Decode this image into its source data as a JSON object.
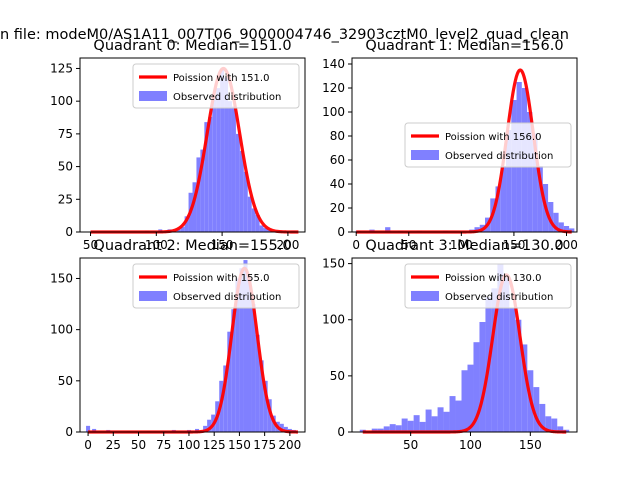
{
  "figure": {
    "suptitle": "n file: modeM0/AS1A11_007T06_9000004746_32903cztM0_level2_quad_clean"
  },
  "colors": {
    "poisson_line": "#ff0000",
    "histogram": "#8080ff",
    "axes": "#000000",
    "background": "#ffffff"
  },
  "chart_data": [
    {
      "type": "bar",
      "title": "Quadrant 0: Median=151.0",
      "median": 151.0,
      "xlim": [
        42,
        213
      ],
      "ylim": [
        0,
        133
      ],
      "xticks": [
        50,
        100,
        150,
        200
      ],
      "yticks": [
        0,
        25,
        50,
        75,
        100,
        125
      ],
      "legend_position": "top-right",
      "series": [
        {
          "name": "Poission with 151.0",
          "kind": "line",
          "mean": 151.0,
          "scale": 125,
          "x_range": [
            50,
            208
          ]
        },
        {
          "name": "Observed distribution",
          "kind": "histogram",
          "bins": [
            [
              93,
              1
            ],
            [
              103,
              2
            ],
            [
              110,
              2
            ],
            [
              117,
              2
            ],
            [
              120,
              4
            ],
            [
              123,
              12
            ],
            [
              126,
              30
            ],
            [
              129,
              38
            ],
            [
              132,
              57
            ],
            [
              135,
              63
            ],
            [
              138,
              84
            ],
            [
              141,
              88
            ],
            [
              144,
              102
            ],
            [
              147,
              110
            ],
            [
              150,
              125
            ],
            [
              153,
              118
            ],
            [
              156,
              100
            ],
            [
              159,
              96
            ],
            [
              162,
              75
            ],
            [
              165,
              62
            ],
            [
              168,
              46
            ],
            [
              171,
              27
            ],
            [
              174,
              18
            ],
            [
              177,
              13
            ],
            [
              180,
              5
            ],
            [
              183,
              3
            ],
            [
              186,
              2
            ],
            [
              195,
              1
            ],
            [
              204,
              1
            ]
          ]
        }
      ]
    },
    {
      "type": "bar",
      "title": "Quadrant 1: Median=156.0",
      "median": 156.0,
      "xlim": [
        -4,
        210
      ],
      "ylim": [
        0,
        145
      ],
      "xticks": [
        0,
        50,
        100,
        150,
        200
      ],
      "yticks": [
        0,
        20,
        40,
        60,
        80,
        100,
        120,
        140
      ],
      "legend_position": "center-right",
      "series": [
        {
          "name": "Poission with 156.0",
          "kind": "line",
          "mean": 156.0,
          "scale": 135,
          "x_range": [
            0,
            205
          ]
        },
        {
          "name": "Observed distribution",
          "kind": "histogram",
          "bins": [
            [
              2,
              1
            ],
            [
              15,
              2
            ],
            [
              30,
              4
            ],
            [
              42,
              1
            ],
            [
              60,
              1
            ],
            [
              85,
              1
            ],
            [
              110,
              2
            ],
            [
              115,
              4
            ],
            [
              120,
              6
            ],
            [
              125,
              12
            ],
            [
              130,
              28
            ],
            [
              135,
              38
            ],
            [
              140,
              55
            ],
            [
              145,
              85
            ],
            [
              150,
              110
            ],
            [
              155,
              125
            ],
            [
              160,
              120
            ],
            [
              165,
              100
            ],
            [
              170,
              82
            ],
            [
              175,
              55
            ],
            [
              180,
              40
            ],
            [
              185,
              25
            ],
            [
              190,
              16
            ],
            [
              195,
              8
            ],
            [
              200,
              5
            ],
            [
              205,
              3
            ]
          ]
        }
      ]
    },
    {
      "type": "bar",
      "title": "Quadrant 2: Median=155.0",
      "median": 155.0,
      "xlim": [
        -8,
        215
      ],
      "ylim": [
        0,
        170
      ],
      "xticks": [
        0,
        25,
        50,
        75,
        100,
        125,
        150,
        175,
        200
      ],
      "yticks": [
        0,
        50,
        100,
        150
      ],
      "legend_position": "top-right",
      "series": [
        {
          "name": "Poission with 155.0",
          "kind": "line",
          "mean": 155.0,
          "scale": 160,
          "x_range": [
            0,
            208
          ]
        },
        {
          "name": "Observed distribution",
          "kind": "histogram",
          "bins": [
            [
              0,
              6
            ],
            [
              6,
              3
            ],
            [
              20,
              2
            ],
            [
              40,
              1
            ],
            [
              60,
              1
            ],
            [
              75,
              1
            ],
            [
              85,
              2
            ],
            [
              100,
              2
            ],
            [
              108,
              3
            ],
            [
              116,
              6
            ],
            [
              120,
              12
            ],
            [
              124,
              17
            ],
            [
              128,
              30
            ],
            [
              132,
              50
            ],
            [
              136,
              65
            ],
            [
              140,
              98
            ],
            [
              144,
              120
            ],
            [
              148,
              150
            ],
            [
              152,
              160
            ],
            [
              156,
              168
            ],
            [
              160,
              150
            ],
            [
              164,
              125
            ],
            [
              168,
              95
            ],
            [
              172,
              70
            ],
            [
              176,
              50
            ],
            [
              180,
              32
            ],
            [
              184,
              16
            ],
            [
              188,
              10
            ],
            [
              192,
              8
            ],
            [
              196,
              5
            ],
            [
              200,
              3
            ],
            [
              204,
              2
            ]
          ]
        }
      ]
    },
    {
      "type": "bar",
      "title": "Quadrant 3: Median=130.0",
      "median": 130.0,
      "xlim": [
        1,
        189
      ],
      "ylim": [
        0,
        155
      ],
      "xticks": [
        50,
        100,
        150
      ],
      "yticks": [
        0,
        50,
        100,
        150
      ],
      "legend_position": "top-right",
      "series": [
        {
          "name": "Poission with 130.0",
          "kind": "line",
          "mean": 130.0,
          "scale": 140,
          "x_range": [
            10,
            180
          ]
        },
        {
          "name": "Observed distribution",
          "kind": "histogram",
          "bins": [
            [
              10,
              2
            ],
            [
              20,
              3
            ],
            [
              25,
              3
            ],
            [
              30,
              5
            ],
            [
              35,
              7
            ],
            [
              40,
              6
            ],
            [
              45,
              12
            ],
            [
              50,
              10
            ],
            [
              55,
              15
            ],
            [
              60,
              9
            ],
            [
              65,
              20
            ],
            [
              70,
              14
            ],
            [
              75,
              22
            ],
            [
              80,
              18
            ],
            [
              85,
              32
            ],
            [
              90,
              28
            ],
            [
              95,
              55
            ],
            [
              100,
              60
            ],
            [
              105,
              80
            ],
            [
              110,
              98
            ],
            [
              115,
              120
            ],
            [
              120,
              128
            ],
            [
              125,
              150
            ],
            [
              130,
              138
            ],
            [
              135,
              110
            ],
            [
              140,
              100
            ],
            [
              145,
              78
            ],
            [
              150,
              55
            ],
            [
              155,
              40
            ],
            [
              160,
              25
            ],
            [
              165,
              14
            ],
            [
              170,
              12
            ],
            [
              175,
              5
            ],
            [
              180,
              2
            ]
          ]
        }
      ]
    }
  ]
}
